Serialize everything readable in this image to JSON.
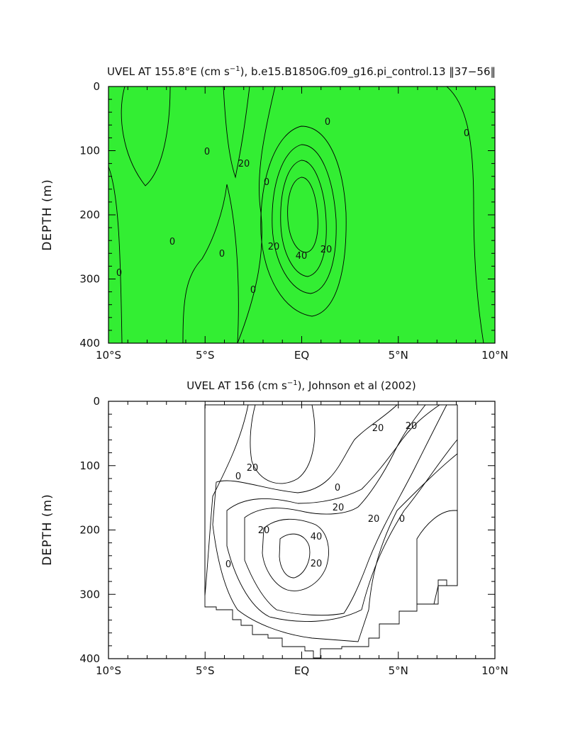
{
  "chart_data": [
    {
      "type": "heatmap",
      "title": "UVEL AT 155.8°E (cm s",
      "title_sup": "−1",
      "title_rest": "), b.e15.B1850G.f09_g16.pi_control.13 ‖37−56‖",
      "ylabel": "DEPTH (m)",
      "xlim": [
        -10,
        10
      ],
      "ylim": [
        0,
        400
      ],
      "x_tick_labels": [
        "10°S",
        "5°S",
        "EQ",
        "5°N",
        "10°N"
      ],
      "y_tick_labels": [
        "0",
        "100",
        "200",
        "300",
        "400"
      ],
      "contour_labels": [
        "0",
        "0",
        "0",
        "0",
        "0",
        "0",
        "0",
        "0",
        "20",
        "20",
        "20",
        "40"
      ],
      "colors": {
        "below_minus10": "#00ffff",
        "minus10_to_0": "#00f5c8",
        "0_to_10": "#33ee33",
        "10_to_20": "#66ff00",
        "20_to_30": "#eaff00",
        "30_to_40": "#ffd633",
        "above_40": "#ff9933"
      },
      "core": {
        "x": 0,
        "depth": 190,
        "max_speed": 50
      }
    },
    {
      "type": "heatmap",
      "title": "UVEL AT 156 (cm s",
      "title_sup": "−1",
      "title_rest": "), Johnson et al (2002)",
      "ylabel": "DEPTH (m)",
      "xlim": [
        -10,
        10
      ],
      "ylim": [
        0,
        400
      ],
      "x_tick_labels": [
        "10°S",
        "5°S",
        "EQ",
        "5°N",
        "10°N"
      ],
      "y_tick_labels": [
        "0",
        "100",
        "200",
        "300",
        "400"
      ],
      "contour_labels": [
        "20",
        "20",
        "20",
        "20",
        "20",
        "20",
        "20",
        "40",
        "0",
        "0",
        "0",
        "0"
      ],
      "data_extent_x": [
        -5,
        8
      ],
      "core": {
        "x": -0.3,
        "depth": 205,
        "max_speed": 45
      }
    }
  ]
}
